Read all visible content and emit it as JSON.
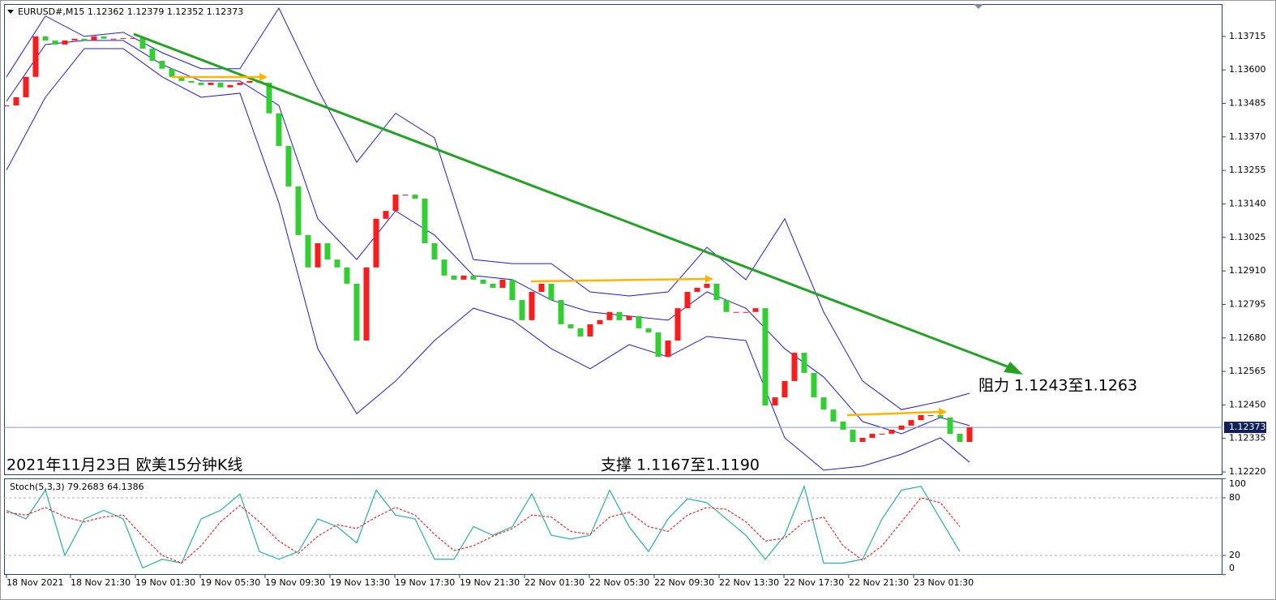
{
  "chart_data": [
    {
      "type": "candlestick",
      "title": "EURUSD#,M15  1.12362 1.12379 1.12352 1.12373",
      "annotations": [
        "2021年11月23日 欧美15分钟K线",
        "支撑 1.1167至1.1190",
        "阻力 1.1243至1.1263"
      ],
      "close": [
        1.13478,
        1.13506,
        1.13576,
        1.13715,
        1.13701,
        1.13687,
        1.13701,
        1.13707,
        1.13701,
        1.13715,
        1.13707,
        1.13707,
        1.13709,
        1.13709,
        1.13673,
        1.13631,
        1.13604,
        1.13576,
        1.13562,
        1.13556,
        1.13548,
        1.13556,
        1.1354,
        1.13548,
        1.13556,
        1.13562,
        1.13556,
        1.13451,
        1.13339,
        1.132,
        1.13033,
        1.12922,
        1.13005,
        1.12949,
        1.12922,
        1.12866,
        1.12671,
        1.12922,
        1.13089,
        1.13116,
        1.13172,
        1.13172,
        1.13158,
        1.13005,
        1.12949,
        1.12894,
        1.1288,
        1.12894,
        1.1288,
        1.12866,
        1.12852,
        1.1288,
        1.1281,
        1.12741,
        1.12838,
        1.12866,
        1.1281,
        1.12727,
        1.12713,
        1.12685,
        1.12727,
        1.12741,
        1.12769,
        1.12741,
        1.12755,
        1.12713,
        1.12699,
        1.12615,
        1.12671,
        1.12782,
        1.12838,
        1.12852,
        1.12866,
        1.1281,
        1.12769,
        1.12769,
        1.12769,
        1.12782,
        1.12448,
        1.12476,
        1.12532,
        1.12629,
        1.1256,
        1.12476,
        1.12434,
        1.12393,
        1.12365,
        1.12323,
        1.12337,
        1.12351,
        1.12351,
        1.12365,
        1.12379,
        1.12398,
        1.12415,
        1.12415,
        1.12407,
        1.12351,
        1.12323,
        1.12373
      ],
      "up_color": "#ff1a1a",
      "down_color": "#2fd02f",
      "bands": {
        "color": "#1a1ae6",
        "x": [
          0,
          4,
          8,
          12,
          16,
          20,
          24,
          28,
          32,
          36,
          40,
          44,
          48,
          52,
          56,
          60,
          64,
          68,
          72,
          76,
          80,
          84,
          88,
          92,
          96,
          99
        ],
        "upper": [
          1.13576,
          1.13785,
          1.13715,
          1.13729,
          1.13659,
          1.13604,
          1.13604,
          1.13812,
          1.13534,
          1.13283,
          1.13451,
          1.13367,
          1.12949,
          1.12935,
          1.12935,
          1.12838,
          1.12824,
          1.12838,
          1.12991,
          1.1288,
          1.13089,
          1.12769,
          1.12532,
          1.12434,
          1.12462,
          1.1249
        ],
        "middle": [
          1.13492,
          1.13687,
          1.13701,
          1.13701,
          1.13618,
          1.13562,
          1.13562,
          1.13478,
          1.13089,
          1.12949,
          1.13116,
          1.13033,
          1.12894,
          1.1288,
          1.1281,
          1.12769,
          1.12755,
          1.12741,
          1.12838,
          1.12782,
          1.12643,
          1.12546,
          1.12393,
          1.12351,
          1.12407,
          1.12379
        ],
        "lower": [
          1.13256,
          1.13506,
          1.13673,
          1.13673,
          1.13576,
          1.13506,
          1.1352,
          1.13144,
          1.12643,
          1.1242,
          1.12532,
          1.12671,
          1.12782,
          1.12741,
          1.12643,
          1.12574,
          1.12657,
          1.12615,
          1.12685,
          1.12671,
          1.12337,
          1.12226,
          1.1224,
          1.12281,
          1.12337,
          1.12253
        ]
      },
      "last_price": 1.12373,
      "ylim": [
        1.12209,
        1.13826
      ],
      "yticks": [
        1.13715,
        {
          "value": 1.136,
          "label": "1.13600"
        },
        1.13485,
        {
          "value": 1.1337,
          "label": "1.13370"
        },
        1.13255,
        {
          "value": 1.1314,
          "label": "1.13140"
        },
        1.13025,
        {
          "value": 1.1291,
          "label": "1.12910"
        },
        1.12795,
        {
          "value": 1.1268,
          "label": "1.12680"
        },
        1.12565,
        {
          "value": 1.1245,
          "label": "1.12450"
        },
        1.12335,
        {
          "value": 1.1222,
          "label": "1.12220"
        }
      ],
      "xlim": [
        0,
        125
      ],
      "xticks": [
        {
          "value": 0,
          "label": "18 Nov 2021"
        },
        {
          "value": 6.58,
          "label": "18 Nov 21:30"
        },
        {
          "value": 13.25,
          "label": "19 Nov 01:30"
        },
        {
          "value": 19.92,
          "label": "19 Nov 05:30"
        },
        {
          "value": 26.58,
          "label": "19 Nov 09:30"
        },
        {
          "value": 33.25,
          "label": "19 Nov 13:30"
        },
        {
          "value": 39.92,
          "label": "19 Nov 17:30"
        },
        {
          "value": 46.58,
          "label": "19 Nov 21:30"
        },
        {
          "value": 53.25,
          "label": "22 Nov 01:30"
        },
        {
          "value": 59.92,
          "label": "22 Nov 05:30"
        },
        {
          "value": 66.58,
          "label": "22 Nov 09:30"
        },
        {
          "value": 73.25,
          "label": "22 Nov 13:30"
        },
        {
          "value": 79.92,
          "label": "22 Nov 17:30"
        },
        {
          "value": 86.58,
          "label": "22 Nov 21:30"
        },
        {
          "value": 93.25,
          "label": "23 Nov 01:30"
        }
      ]
    },
    {
      "type": "line",
      "title": "Stoch(5,3,3) 79.2683 64.1386",
      "x": [
        0,
        2,
        4,
        6,
        8,
        10,
        12,
        14,
        16,
        18,
        20,
        22,
        24,
        26,
        28,
        30,
        32,
        34,
        36,
        38,
        40,
        42,
        44,
        46,
        48,
        50,
        52,
        54,
        56,
        58,
        60,
        62,
        64,
        66,
        68,
        70,
        72,
        74,
        76,
        78,
        80,
        82,
        84,
        86,
        88,
        90,
        92,
        94,
        96,
        98
      ],
      "series": [
        {
          "color": "#20b2aa",
          "dashed": false,
          "values": [
            67,
            58,
            88,
            20,
            58,
            67,
            58,
            7,
            16,
            12,
            58,
            67,
            84,
            24,
            16,
            24,
            58,
            50,
            33,
            88,
            62,
            58,
            16,
            16,
            50,
            41,
            50,
            84,
            41,
            37,
            41,
            88,
            50,
            24,
            58,
            79,
            75,
            58,
            41,
            16,
            41,
            92,
            12,
            12,
            16,
            58,
            88,
            92,
            58,
            24
          ]
        },
        {
          "color": "#ff2020",
          "dashed": true,
          "values": [
            65,
            62,
            70,
            60,
            55,
            60,
            62,
            40,
            20,
            12,
            30,
            55,
            72,
            55,
            35,
            22,
            40,
            52,
            48,
            60,
            70,
            62,
            42,
            25,
            30,
            40,
            48,
            62,
            60,
            45,
            42,
            60,
            65,
            50,
            45,
            62,
            70,
            68,
            55,
            35,
            38,
            55,
            60,
            30,
            15,
            30,
            55,
            80,
            75,
            50
          ]
        }
      ],
      "ylim": [
        0,
        100
      ],
      "yticks": [
        100,
        80,
        20,
        0
      ],
      "levels": [
        80,
        20
      ],
      "xlim": [
        0,
        125
      ]
    }
  ]
}
